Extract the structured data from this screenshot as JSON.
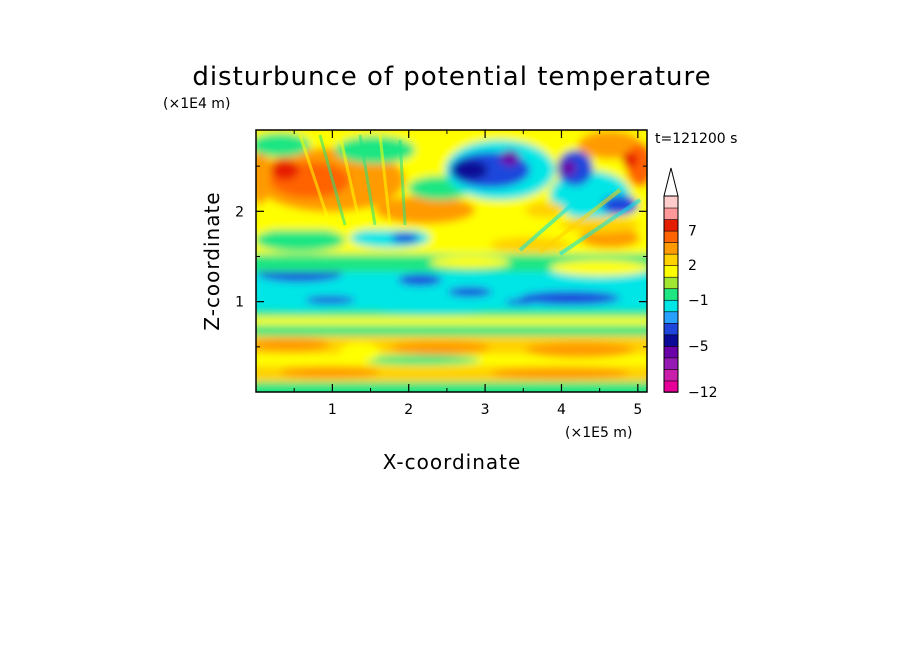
{
  "chart_data": {
    "type": "heatmap",
    "title": "disturbunce of potential temperature",
    "xlabel": "X-coordinate",
    "ylabel": "Z-coordinate",
    "x_unit": "(×1E5 m)",
    "y_unit": "(×1E4 m)",
    "time_label": "t=121200 s",
    "xlim": [
      0,
      5.12
    ],
    "ylim": [
      0,
      2.9
    ],
    "x_ticks": [
      1,
      2,
      3,
      4,
      5
    ],
    "y_ticks": [
      1,
      2
    ],
    "colorbar": {
      "levels": [
        -12,
        -10,
        -8,
        -6,
        -5,
        -4,
        -3,
        -2,
        -1,
        0,
        1,
        2,
        3,
        5,
        7,
        9,
        11
      ],
      "labeled_ticks": [
        -12,
        -5,
        -1,
        2,
        7
      ],
      "colors": [
        "#e60099",
        "#c81eaa",
        "#9619b4",
        "#6a00a8",
        "#0a0a96",
        "#1e46dc",
        "#28a0ff",
        "#00e6e6",
        "#1ee682",
        "#a0e632",
        "#ffff00",
        "#ffd200",
        "#ff9b00",
        "#ff6400",
        "#e61e00",
        "#ff9999",
        "#ffcccc"
      ],
      "extend": "max"
    }
  }
}
